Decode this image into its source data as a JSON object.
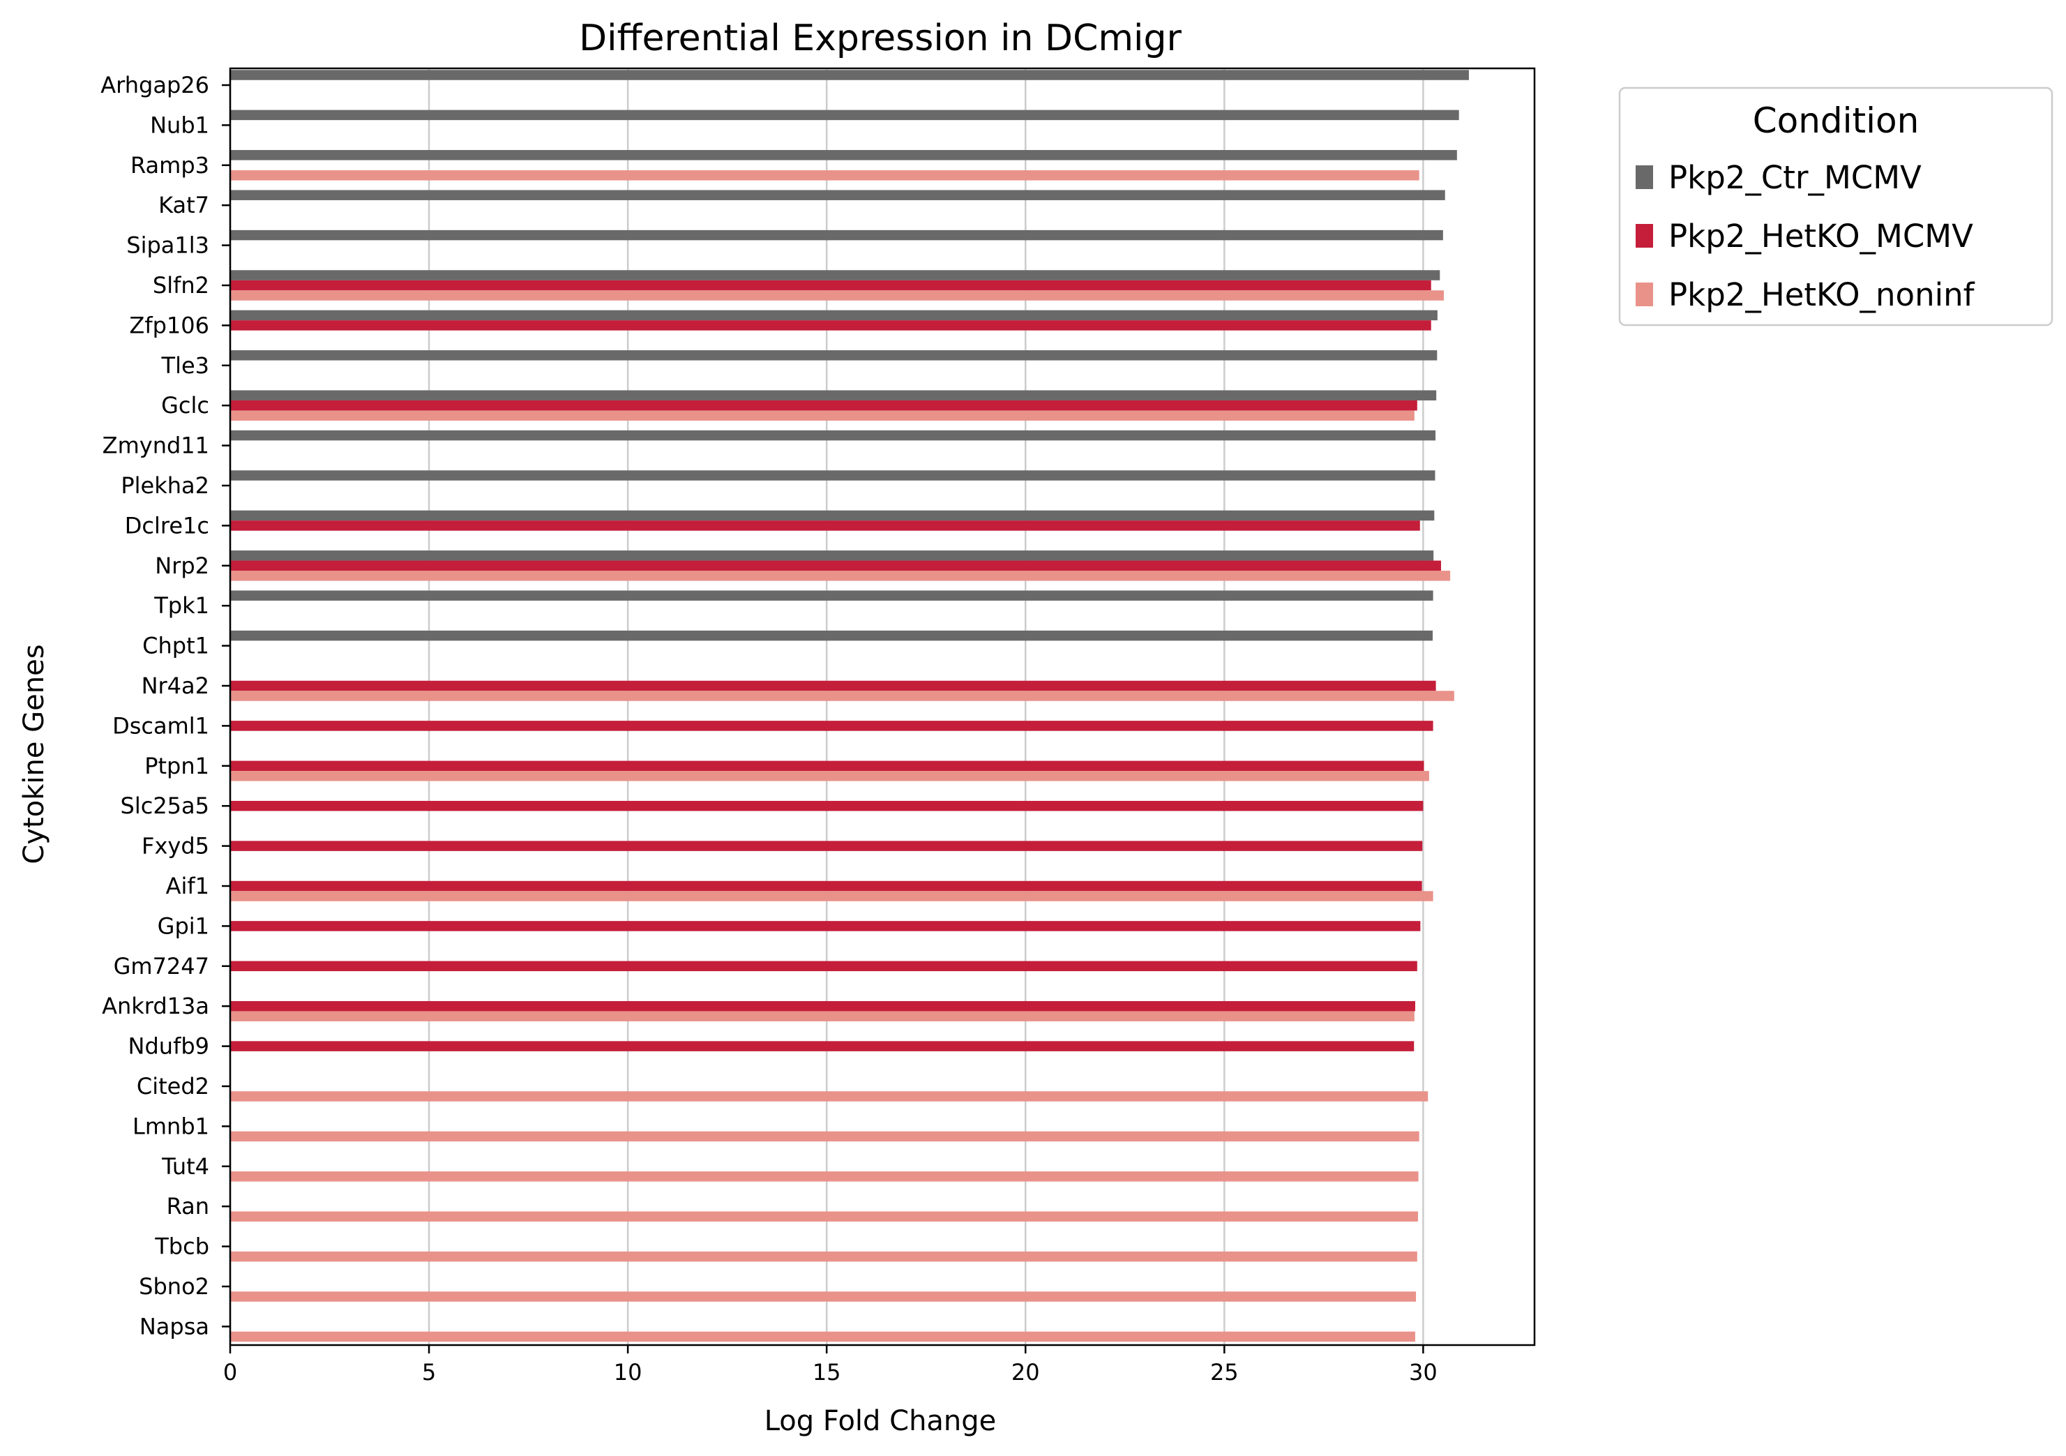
{
  "chart_data": {
    "type": "bar",
    "orientation": "horizontal",
    "title": "Differential Expression in DCmigr",
    "xlabel": "Log Fold Change",
    "ylabel": "Cytokine Genes",
    "xlim": [
      0,
      32.8
    ],
    "xticks": [
      0,
      5,
      10,
      15,
      20,
      25,
      30
    ],
    "grid": "x",
    "legend": {
      "title": "Condition",
      "placement": "outside-top-right"
    },
    "categories": [
      "Arhgap26",
      "Nub1",
      "Ramp3",
      "Kat7",
      "Sipa1l3",
      "Slfn2",
      "Zfp106",
      "Tle3",
      "Gclc",
      "Zmynd11",
      "Plekha2",
      "Dclre1c",
      "Nrp2",
      "Tpk1",
      "Chpt1",
      "Nr4a2",
      "Dscaml1",
      "Ptpn1",
      "Slc25a5",
      "Fxyd5",
      "Aif1",
      "Gpi1",
      "Gm7247",
      "Ankrd13a",
      "Ndufb9",
      "Cited2",
      "Lmnb1",
      "Tut4",
      "Ran",
      "Tbcb",
      "Sbno2",
      "Napsa"
    ],
    "series": [
      {
        "name": "Pkp2_Ctr_MCMV",
        "color": "#696969",
        "values": [
          31.15,
          30.9,
          30.85,
          30.55,
          30.5,
          30.42,
          30.36,
          30.35,
          30.33,
          30.31,
          30.3,
          30.28,
          30.26,
          30.25,
          30.24,
          null,
          null,
          null,
          null,
          null,
          null,
          null,
          null,
          null,
          null,
          null,
          null,
          null,
          null,
          null,
          null,
          null
        ]
      },
      {
        "name": "Pkp2_HetKO_MCMV",
        "color": "#c41e3a",
        "values": [
          null,
          null,
          null,
          null,
          null,
          30.2,
          30.2,
          null,
          29.85,
          null,
          null,
          29.92,
          30.45,
          null,
          null,
          30.32,
          30.25,
          30.02,
          30.0,
          29.98,
          29.97,
          29.93,
          29.85,
          29.8,
          29.77,
          null,
          null,
          null,
          null,
          null,
          null,
          null
        ]
      },
      {
        "name": "Pkp2_HetKO_noninf",
        "color": "#e9928a",
        "values": [
          null,
          null,
          29.9,
          null,
          null,
          30.52,
          null,
          null,
          29.78,
          null,
          null,
          null,
          30.68,
          null,
          null,
          30.78,
          null,
          30.15,
          null,
          null,
          30.25,
          null,
          null,
          29.78,
          null,
          30.12,
          29.9,
          29.88,
          29.87,
          29.85,
          29.82,
          29.8
        ]
      }
    ]
  }
}
